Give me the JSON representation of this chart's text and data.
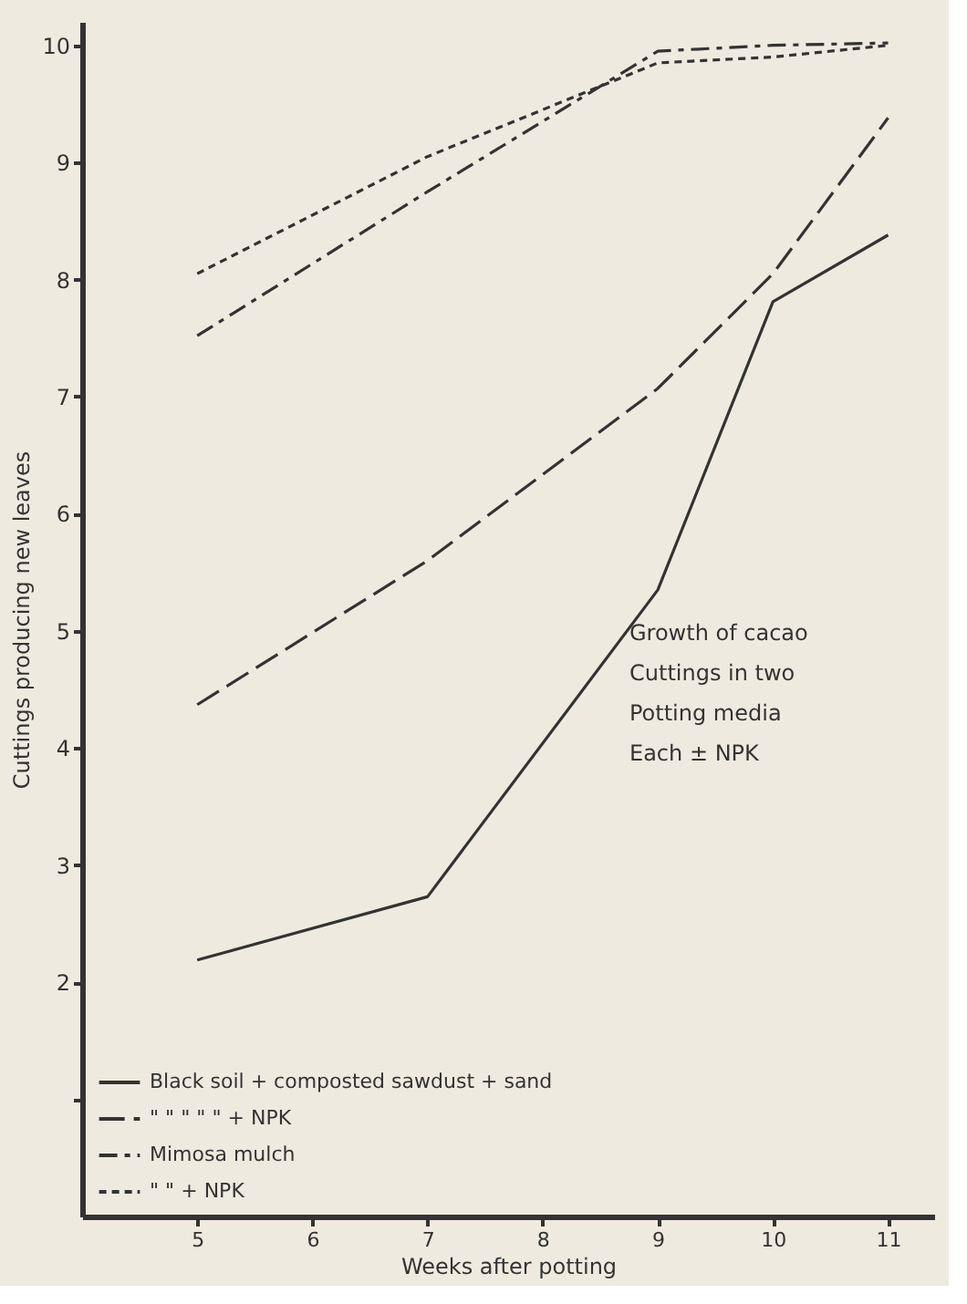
{
  "chart_data": {
    "type": "line",
    "xlabel": "Weeks after potting",
    "ylabel": "Cuttings producing new leaves",
    "x": [
      5,
      7,
      9,
      10,
      11
    ],
    "series": [
      {
        "name": "Black soil + composted sawdust + sand",
        "color": "#333333",
        "line_style": "solid",
        "values": [
          2.19,
          2.73,
          5.35,
          7.81,
          8.38
        ]
      },
      {
        "name": "\"    \"    \"    \"    \"    + NPK",
        "color": "#333333",
        "line_style": "dashed",
        "values": [
          4.37,
          5.6,
          7.07,
          8.05,
          9.38
        ]
      },
      {
        "name": "Mimosa mulch",
        "color": "#333333",
        "line_style": "dashdot",
        "values": [
          7.52,
          8.75,
          9.95,
          10.0,
          10.02
        ]
      },
      {
        "name": "\"    \" + NPK",
        "color": "#333333",
        "line_style": "dotted",
        "values": [
          8.05,
          9.05,
          9.85,
          9.9,
          10.0
        ]
      }
    ],
    "xlim": [
      4,
      11.4
    ],
    "xticks": [
      5,
      6,
      7,
      8,
      9,
      10,
      11
    ],
    "ylim": [
      0,
      10.2
    ],
    "yticks": [
      {
        "value": 1,
        "label": null
      },
      2,
      3,
      4,
      5,
      6,
      7,
      8,
      9,
      10
    ],
    "annotations": [
      "Growth of cacao\nCuttings in two\nPotting media\nEach ± NPK"
    ],
    "grid": false,
    "legend": "bottom left",
    "marker": "none"
  }
}
